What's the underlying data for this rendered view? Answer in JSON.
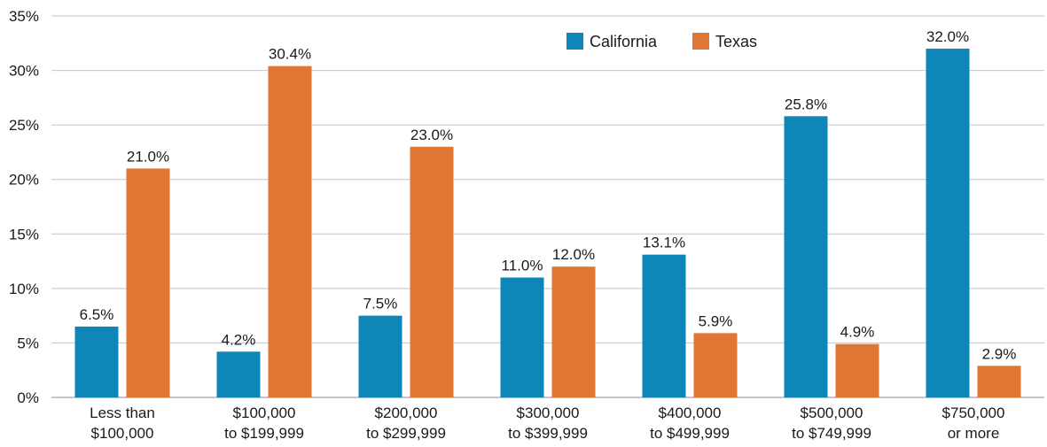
{
  "chart_data": {
    "type": "bar",
    "categories": [
      [
        "Less than",
        "$100,000"
      ],
      [
        "$100,000",
        "to $199,999"
      ],
      [
        "$200,000",
        "to $299,999"
      ],
      [
        "$300,000",
        "to $399,999"
      ],
      [
        "$400,000",
        "to $499,999"
      ],
      [
        "$500,000",
        "to $749,999"
      ],
      [
        "$750,000",
        "or more"
      ]
    ],
    "series": [
      {
        "name": "California",
        "color": "#0e86b8",
        "values": [
          6.5,
          4.2,
          7.5,
          11.0,
          13.1,
          25.8,
          32.0
        ],
        "labels": [
          "6.5%",
          "4.2%",
          "7.5%",
          "11.0%",
          "13.1%",
          "25.8%",
          "32.0%"
        ]
      },
      {
        "name": "Texas",
        "color": "#e07634",
        "values": [
          21.0,
          30.4,
          23.0,
          12.0,
          5.9,
          4.9,
          2.9
        ],
        "labels": [
          "21.0%",
          "30.4%",
          "23.0%",
          "12.0%",
          "5.9%",
          "4.9%",
          "2.9%"
        ]
      }
    ],
    "ylim": [
      0,
      35
    ],
    "yticks": [
      0,
      5,
      10,
      15,
      20,
      25,
      30,
      35
    ],
    "ytick_labels": [
      "0%",
      "5%",
      "10%",
      "15%",
      "20%",
      "25%",
      "30%",
      "35%"
    ],
    "grid": true,
    "legend_position": "top-center"
  }
}
